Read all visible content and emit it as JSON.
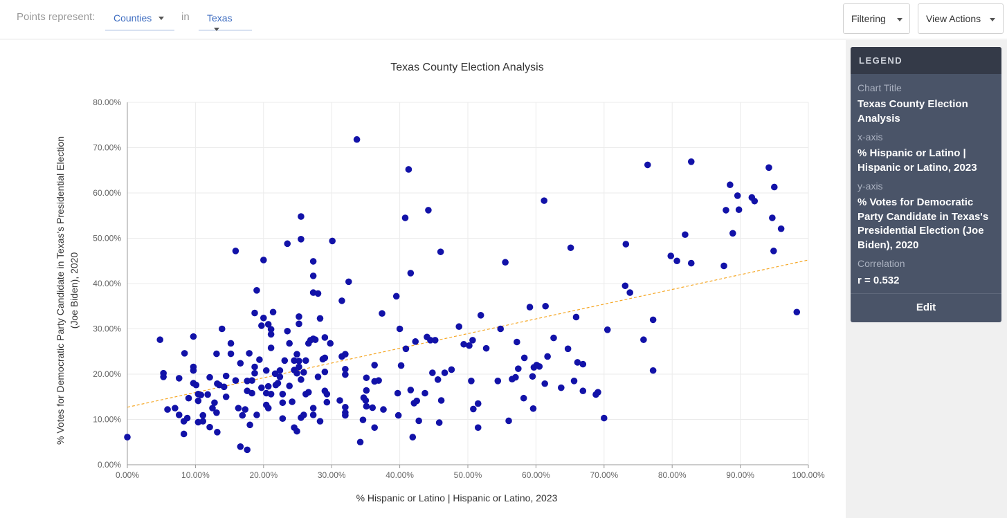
{
  "toolbar": {
    "points_label": "Points represent:",
    "in_label": "in",
    "unit_select": "Counties",
    "state_select": "Texas",
    "filter_button": "Filtering",
    "actions_button": "View Actions"
  },
  "legend": {
    "header": "LEGEND",
    "title_key": "Chart Title",
    "title_val": "Texas County Election Analysis",
    "x_key": "x-axis",
    "x_val": "% Hispanic or Latino | Hispanic or Latino, 2023",
    "y_key": "y-axis",
    "y_val": "% Votes for Democratic Party Candidate in Texas's Presidential Election (Joe Biden), 2020",
    "corr_key": "Correlation",
    "corr_val": "r = 0.532",
    "edit": "Edit"
  },
  "colors": {
    "points": "#1212a8",
    "trend": "#f5a623",
    "accent": "#3d6cc0"
  },
  "chart_data": {
    "type": "scatter",
    "title": "Texas County Election Analysis",
    "xlabel": "% Hispanic or Latino | Hispanic or Latino, 2023",
    "ylabel_lines": [
      "% Votes for Democratic Party Candidate in Texas's Presidential Election",
      "(Joe Biden), 2020"
    ],
    "xlim": [
      0,
      100
    ],
    "ylim": [
      0,
      80
    ],
    "x_ticks": [
      "0.00%",
      "10.00%",
      "20.00%",
      "30.00%",
      "40.00%",
      "50.00%",
      "60.00%",
      "70.00%",
      "80.00%",
      "90.00%",
      "100.00%"
    ],
    "y_ticks": [
      "0.00%",
      "10.00%",
      "20.00%",
      "30.00%",
      "40.00%",
      "50.00%",
      "60.00%",
      "70.00%",
      "80.00%"
    ],
    "grid": true,
    "trend": {
      "x0": 0,
      "y0": 12.7,
      "x1": 100,
      "y1": 45.2
    },
    "correlation": 0.532,
    "points": [
      [
        0.0,
        6.1
      ],
      [
        4.8,
        27.6
      ],
      [
        5.3,
        20.2
      ],
      [
        5.3,
        19.4
      ],
      [
        5.9,
        12.2
      ],
      [
        7.0,
        12.5
      ],
      [
        7.6,
        19.1
      ],
      [
        7.6,
        11.0
      ],
      [
        8.3,
        6.8
      ],
      [
        8.3,
        9.6
      ],
      [
        8.4,
        24.6
      ],
      [
        8.8,
        10.3
      ],
      [
        9.0,
        14.7
      ],
      [
        9.7,
        28.3
      ],
      [
        9.7,
        21.6
      ],
      [
        9.7,
        20.8
      ],
      [
        9.7,
        18.0
      ],
      [
        10.1,
        17.6
      ],
      [
        10.4,
        14.1
      ],
      [
        10.4,
        15.6
      ],
      [
        10.4,
        9.4
      ],
      [
        10.8,
        15.4
      ],
      [
        11.1,
        10.9
      ],
      [
        11.1,
        9.6
      ],
      [
        11.8,
        15.5
      ],
      [
        12.1,
        19.3
      ],
      [
        12.1,
        8.3
      ],
      [
        12.5,
        12.5
      ],
      [
        12.8,
        13.7
      ],
      [
        13.1,
        11.5
      ],
      [
        13.1,
        24.5
      ],
      [
        13.2,
        17.9
      ],
      [
        13.2,
        7.2
      ],
      [
        13.5,
        17.6
      ],
      [
        13.9,
        30.0
      ],
      [
        14.2,
        17.2
      ],
      [
        14.5,
        19.6
      ],
      [
        14.5,
        15.0
      ],
      [
        15.2,
        26.8
      ],
      [
        15.2,
        24.5
      ],
      [
        15.9,
        18.6
      ],
      [
        15.9,
        47.2
      ],
      [
        16.3,
        12.5
      ],
      [
        16.6,
        22.4
      ],
      [
        16.6,
        4.0
      ],
      [
        16.9,
        10.9
      ],
      [
        17.3,
        12.2
      ],
      [
        17.6,
        18.5
      ],
      [
        17.6,
        16.3
      ],
      [
        17.6,
        3.3
      ],
      [
        17.9,
        24.6
      ],
      [
        18.0,
        8.8
      ],
      [
        18.3,
        18.6
      ],
      [
        18.3,
        15.8
      ],
      [
        18.7,
        33.5
      ],
      [
        18.7,
        21.6
      ],
      [
        18.7,
        20.2
      ],
      [
        19.0,
        11.0
      ],
      [
        19.0,
        38.5
      ],
      [
        19.4,
        23.2
      ],
      [
        19.7,
        30.7
      ],
      [
        19.7,
        17.0
      ],
      [
        20.0,
        45.2
      ],
      [
        20.0,
        32.4
      ],
      [
        20.4,
        20.8
      ],
      [
        20.4,
        15.8
      ],
      [
        20.4,
        13.2
      ],
      [
        20.7,
        31.0
      ],
      [
        20.7,
        17.3
      ],
      [
        20.7,
        12.5
      ],
      [
        21.1,
        29.9
      ],
      [
        21.1,
        28.8
      ],
      [
        21.1,
        25.8
      ],
      [
        21.1,
        15.6
      ],
      [
        21.4,
        33.7
      ],
      [
        21.7,
        20.1
      ],
      [
        21.8,
        17.6
      ],
      [
        22.1,
        18.0
      ],
      [
        22.4,
        20.8
      ],
      [
        22.4,
        19.4
      ],
      [
        22.8,
        15.6
      ],
      [
        22.8,
        13.7
      ],
      [
        22.8,
        10.2
      ],
      [
        23.1,
        23.0
      ],
      [
        23.5,
        48.8
      ],
      [
        23.5,
        29.5
      ],
      [
        23.8,
        26.8
      ],
      [
        23.8,
        17.4
      ],
      [
        24.2,
        13.9
      ],
      [
        24.5,
        23.0
      ],
      [
        24.5,
        20.9
      ],
      [
        24.5,
        8.2
      ],
      [
        24.9,
        24.4
      ],
      [
        24.9,
        20.2
      ],
      [
        24.9,
        7.4
      ],
      [
        25.2,
        32.7
      ],
      [
        25.2,
        31.1
      ],
      [
        25.2,
        22.9
      ],
      [
        25.2,
        21.6
      ],
      [
        25.5,
        54.8
      ],
      [
        25.5,
        49.8
      ],
      [
        25.5,
        18.8
      ],
      [
        25.5,
        10.4
      ],
      [
        25.9,
        11.0
      ],
      [
        25.9,
        20.4
      ],
      [
        26.2,
        23.0
      ],
      [
        26.2,
        15.6
      ],
      [
        26.6,
        16.0
      ],
      [
        26.6,
        26.8
      ],
      [
        26.9,
        27.5
      ],
      [
        27.3,
        44.9
      ],
      [
        27.3,
        41.7
      ],
      [
        27.3,
        38.0
      ],
      [
        27.3,
        27.8
      ],
      [
        27.3,
        12.5
      ],
      [
        27.3,
        11.0
      ],
      [
        27.6,
        27.6
      ],
      [
        28.0,
        37.8
      ],
      [
        28.0,
        19.4
      ],
      [
        28.3,
        32.3
      ],
      [
        28.3,
        9.6
      ],
      [
        28.7,
        23.3
      ],
      [
        29.0,
        28.1
      ],
      [
        29.0,
        23.6
      ],
      [
        29.0,
        16.3
      ],
      [
        29.0,
        20.5
      ],
      [
        29.3,
        15.6
      ],
      [
        29.3,
        13.8
      ],
      [
        29.8,
        26.8
      ],
      [
        30.1,
        49.4
      ],
      [
        31.2,
        14.2
      ],
      [
        31.5,
        36.2
      ],
      [
        31.5,
        23.9
      ],
      [
        32.0,
        24.4
      ],
      [
        32.0,
        21.1
      ],
      [
        32.0,
        19.9
      ],
      [
        32.0,
        12.7
      ],
      [
        32.0,
        11.5
      ],
      [
        32.0,
        10.9
      ],
      [
        32.5,
        40.4
      ],
      [
        33.7,
        71.8
      ],
      [
        34.2,
        5.0
      ],
      [
        34.6,
        9.9
      ],
      [
        34.7,
        14.8
      ],
      [
        35.0,
        14.2
      ],
      [
        35.1,
        19.2
      ],
      [
        35.1,
        16.4
      ],
      [
        35.1,
        12.9
      ],
      [
        36.0,
        12.6
      ],
      [
        36.3,
        22.0
      ],
      [
        36.3,
        18.4
      ],
      [
        36.3,
        8.2
      ],
      [
        36.9,
        18.6
      ],
      [
        37.4,
        33.4
      ],
      [
        37.6,
        12.2
      ],
      [
        39.5,
        37.2
      ],
      [
        39.7,
        15.8
      ],
      [
        39.8,
        10.9
      ],
      [
        40.0,
        30.0
      ],
      [
        40.2,
        21.9
      ],
      [
        40.8,
        54.5
      ],
      [
        40.9,
        25.6
      ],
      [
        41.3,
        65.2
      ],
      [
        41.6,
        42.3
      ],
      [
        41.6,
        16.5
      ],
      [
        41.9,
        6.1
      ],
      [
        42.1,
        13.6
      ],
      [
        42.3,
        27.2
      ],
      [
        42.5,
        14.1
      ],
      [
        42.8,
        9.7
      ],
      [
        43.7,
        15.8
      ],
      [
        44.0,
        28.2
      ],
      [
        44.2,
        56.2
      ],
      [
        44.5,
        27.5
      ],
      [
        44.8,
        20.3
      ],
      [
        45.2,
        27.5
      ],
      [
        45.6,
        18.8
      ],
      [
        45.8,
        9.3
      ],
      [
        46.0,
        47.0
      ],
      [
        46.1,
        14.2
      ],
      [
        46.6,
        20.3
      ],
      [
        47.6,
        21.0
      ],
      [
        48.7,
        30.5
      ],
      [
        49.4,
        26.6
      ],
      [
        50.2,
        26.3
      ],
      [
        50.5,
        18.5
      ],
      [
        50.7,
        27.5
      ],
      [
        50.8,
        12.3
      ],
      [
        51.5,
        13.5
      ],
      [
        51.5,
        8.2
      ],
      [
        51.9,
        33.0
      ],
      [
        52.7,
        25.7
      ],
      [
        54.4,
        18.5
      ],
      [
        54.8,
        30.0
      ],
      [
        55.5,
        44.7
      ],
      [
        56.0,
        9.7
      ],
      [
        56.5,
        18.9
      ],
      [
        57.0,
        19.3
      ],
      [
        57.2,
        27.1
      ],
      [
        57.4,
        21.2
      ],
      [
        58.2,
        14.7
      ],
      [
        58.3,
        23.6
      ],
      [
        59.1,
        34.8
      ],
      [
        59.5,
        19.5
      ],
      [
        59.6,
        12.4
      ],
      [
        59.7,
        21.5
      ],
      [
        60.1,
        22.0
      ],
      [
        60.5,
        21.7
      ],
      [
        61.2,
        58.3
      ],
      [
        61.3,
        17.9
      ],
      [
        61.4,
        35.0
      ],
      [
        61.7,
        23.9
      ],
      [
        62.6,
        28.0
      ],
      [
        63.7,
        17.0
      ],
      [
        64.7,
        25.6
      ],
      [
        65.1,
        47.9
      ],
      [
        65.6,
        18.5
      ],
      [
        65.9,
        32.6
      ],
      [
        66.1,
        22.6
      ],
      [
        66.9,
        22.2
      ],
      [
        66.9,
        16.3
      ],
      [
        68.8,
        15.5
      ],
      [
        69.1,
        16.0
      ],
      [
        70.0,
        10.3
      ],
      [
        70.5,
        29.8
      ],
      [
        73.1,
        39.5
      ],
      [
        73.2,
        48.7
      ],
      [
        73.8,
        38.0
      ],
      [
        75.8,
        27.6
      ],
      [
        76.4,
        66.2
      ],
      [
        77.2,
        20.8
      ],
      [
        77.2,
        32.0
      ],
      [
        79.8,
        46.1
      ],
      [
        80.7,
        45.0
      ],
      [
        81.9,
        50.8
      ],
      [
        82.8,
        66.9
      ],
      [
        82.8,
        44.5
      ],
      [
        87.6,
        43.9
      ],
      [
        87.9,
        56.2
      ],
      [
        88.5,
        61.8
      ],
      [
        88.9,
        51.1
      ],
      [
        89.6,
        59.4
      ],
      [
        89.8,
        56.3
      ],
      [
        91.7,
        59.0
      ],
      [
        92.1,
        58.2
      ],
      [
        94.2,
        65.6
      ],
      [
        94.7,
        54.5
      ],
      [
        94.9,
        47.2
      ],
      [
        95.0,
        61.3
      ],
      [
        96.0,
        52.1
      ],
      [
        98.3,
        33.7
      ]
    ]
  }
}
